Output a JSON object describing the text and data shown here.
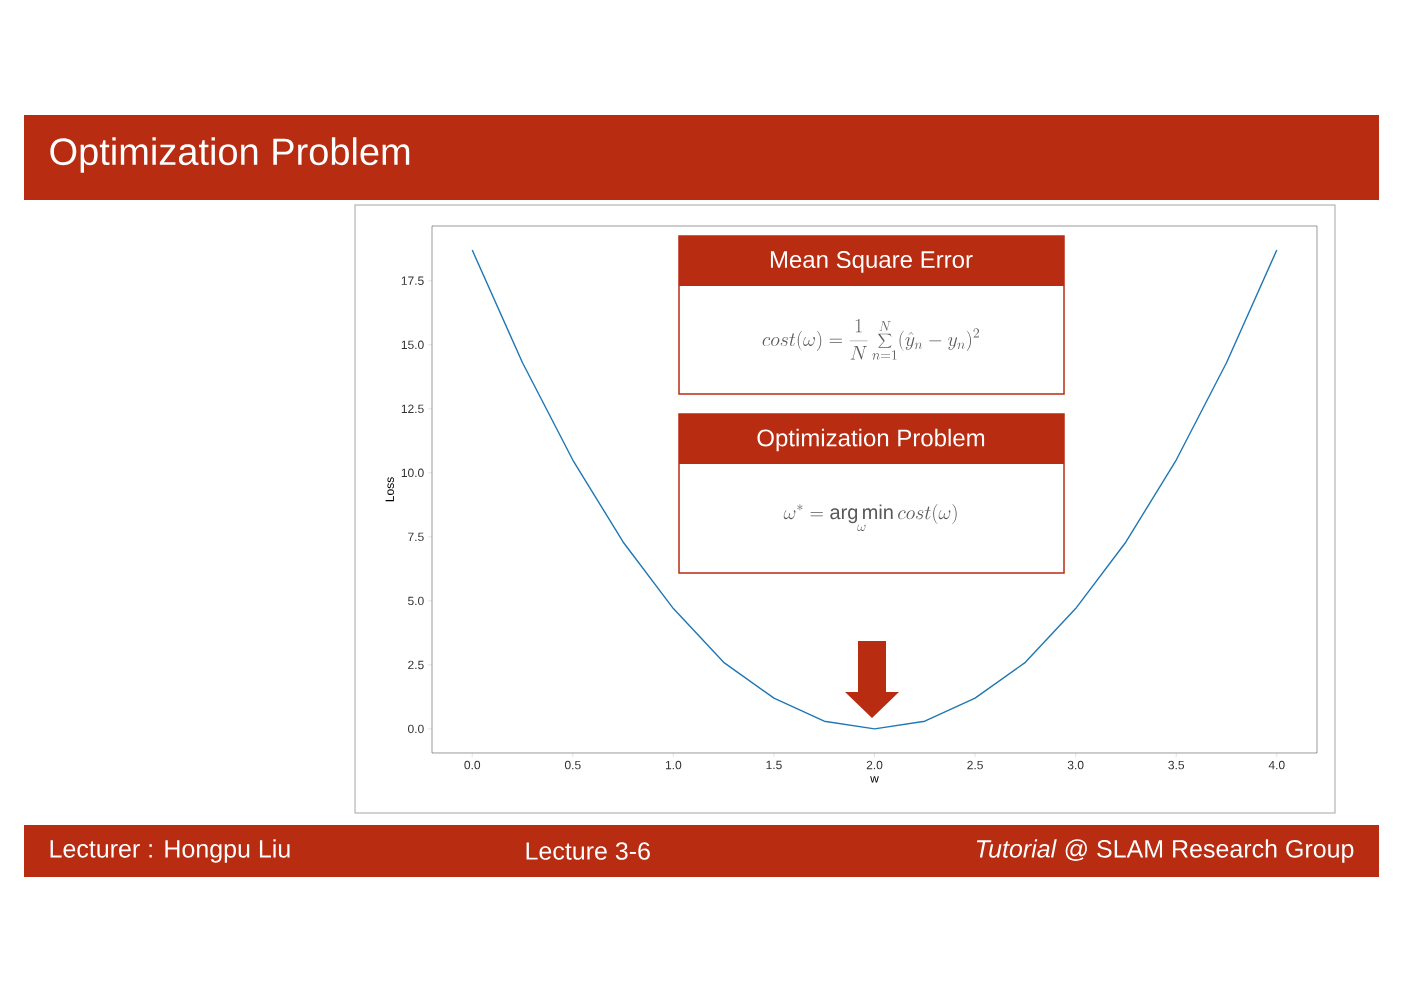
{
  "chart_data": {
    "type": "line",
    "title": "Optimization Problem",
    "xlabel": "w",
    "ylabel": "Loss",
    "x": [
      0,
      0.25,
      0.5,
      0.75,
      1.0,
      1.25,
      1.5,
      1.75,
      2.0,
      2.25,
      2.5,
      2.75,
      3.0,
      3.25,
      3.5,
      3.75,
      4.0
    ],
    "series": [
      {
        "color": "#1f77b4",
        "values": [
          18.7,
          14.3,
          10.5,
          7.3,
          4.7,
          2.6,
          1.2,
          0.3,
          0,
          0.3,
          1.2,
          2.6,
          4.7,
          7.3,
          10.5,
          14.3,
          18.7
        ]
      }
    ],
    "xlim": [
      -0.2,
      4.2
    ],
    "ylim": [
      -0.94,
      19.64
    ],
    "xticks": [
      {
        "value": 0,
        "label": "0.0"
      },
      {
        "value": 0.5,
        "label": "0.5"
      },
      {
        "value": 1,
        "label": "1.0"
      },
      {
        "value": 1.5,
        "label": "1.5"
      },
      {
        "value": 2,
        "label": "2.0"
      },
      {
        "value": 2.5,
        "label": "2.5"
      },
      {
        "value": 3,
        "label": "3.0"
      },
      {
        "value": 3.5,
        "label": "3.5"
      },
      {
        "value": 4,
        "label": "4.0"
      }
    ],
    "yticks": [
      {
        "value": 0,
        "label": "0.0"
      },
      {
        "value": 2.5,
        "label": "2.5"
      },
      {
        "value": 5,
        "label": "5.0"
      },
      {
        "value": 7.5,
        "label": "7.5"
      },
      {
        "value": 10,
        "label": "10.0"
      },
      {
        "value": 12.5,
        "label": "12.5"
      },
      {
        "value": 15,
        "label": "15.0"
      },
      {
        "value": 17.5,
        "label": "17.5"
      }
    ],
    "annotations": [
      "Mean Square Error",
      "cost(\\omega)=\\frac{1}{N}\\sum_{n=1}^{N}(\\hat{y}_n-y_n)^2",
      "Optimization Problem",
      "\\omega^{*}=\\mathop{\\arg\\min}\\limits_{\\omega} cost(\\omega)",
      "Lecturer : Hongpu Liu",
      "Lecture 3-6",
      "*Tutorial* @ SLAM Research Group"
    ]
  }
}
